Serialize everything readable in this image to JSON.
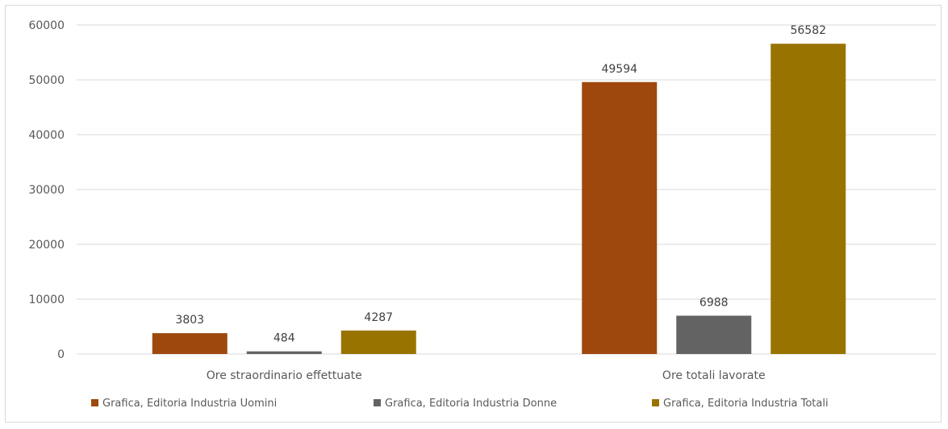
{
  "chart_data": {
    "type": "bar",
    "categories": [
      "Ore straordinario effettuate",
      "Ore totali lavorate"
    ],
    "series": [
      {
        "name": "Grafica, Editoria Industria Uomini",
        "values": [
          3803,
          49594
        ],
        "color": "#9e480e"
      },
      {
        "name": "Grafica, Editoria Industria Donne",
        "values": [
          484,
          6988
        ],
        "color": "#636363"
      },
      {
        "name": "Grafica, Editoria Industria Totali",
        "values": [
          4287,
          56582
        ],
        "color": "#997300"
      }
    ],
    "yticks": [
      0,
      10000,
      20000,
      30000,
      40000,
      50000,
      60000
    ],
    "ylim": [
      0,
      60000
    ],
    "grid": true,
    "legend_position": "bottom",
    "title": "",
    "xlabel": "",
    "ylabel": ""
  }
}
